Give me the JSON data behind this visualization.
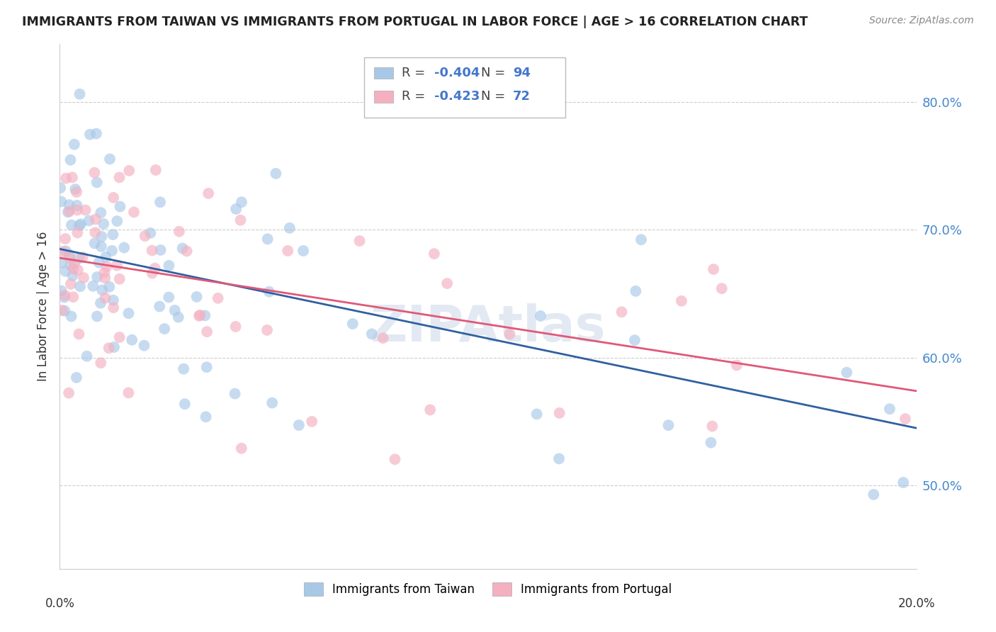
{
  "title": "IMMIGRANTS FROM TAIWAN VS IMMIGRANTS FROM PORTUGAL IN LABOR FORCE | AGE > 16 CORRELATION CHART",
  "source": "Source: ZipAtlas.com",
  "ylabel": "In Labor Force | Age > 16",
  "ytick_labels": [
    "80.0%",
    "70.0%",
    "60.0%",
    "50.0%"
  ],
  "ytick_values": [
    0.8,
    0.7,
    0.6,
    0.5
  ],
  "xmin": 0.0,
  "xmax": 0.2,
  "ymin": 0.435,
  "ymax": 0.845,
  "taiwan_color": "#a8c8e8",
  "portugal_color": "#f4b0c0",
  "taiwan_line_color": "#3060a0",
  "portugal_line_color": "#e05878",
  "taiwan_R": -0.404,
  "taiwan_N": 94,
  "portugal_R": -0.423,
  "portugal_N": 72,
  "taiwan_intercept": 0.685,
  "taiwan_slope": -0.7,
  "portugal_intercept": 0.678,
  "portugal_slope": -0.52,
  "watermark": "ZIPAtlas",
  "legend_label_taiwan": "Immigrants from Taiwan",
  "legend_label_portugal": "Immigrants from Portugal"
}
